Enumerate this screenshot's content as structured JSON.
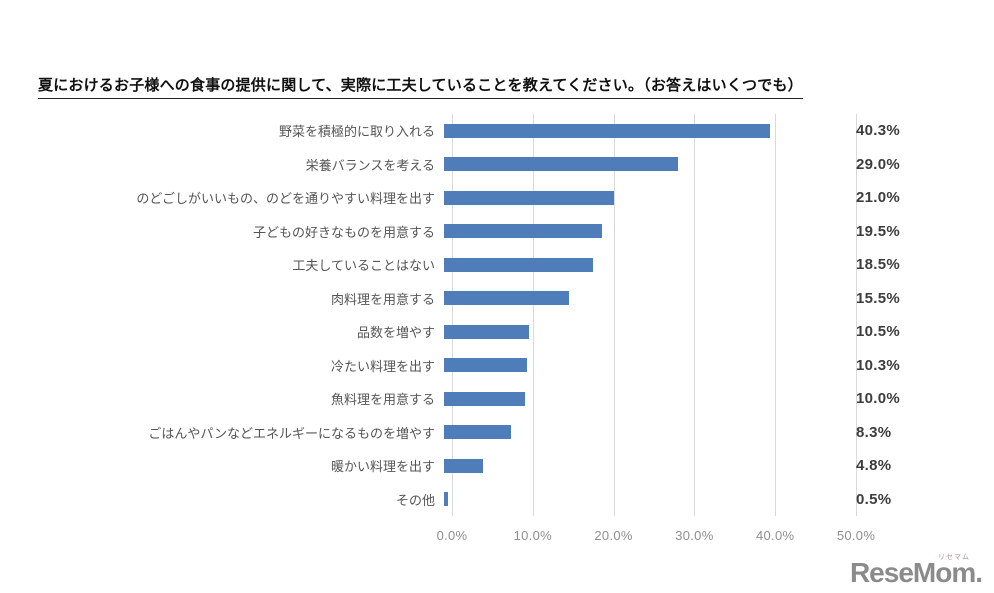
{
  "title": "夏におけるお子様への食事の提供に関して、実際に工夫していることを教えてください。（お答えはいくつでも）",
  "chart_data": {
    "type": "bar",
    "orientation": "horizontal",
    "title": "夏におけるお子様への食事の提供に関して、実際に工夫していることを教えてください。（お答えはいくつでも）",
    "categories": [
      "野菜を積極的に取り入れる",
      "栄養バランスを考える",
      "のどごしがいいもの、のどを通りやすい料理を出す",
      "子どもの好きなものを用意する",
      "工夫していることはない",
      "肉料理を用意する",
      "品数を増やす",
      "冷たい料理を出す",
      "魚料理を用意する",
      "ごはんやパンなどエネルギーになるものを増やす",
      "暖かい料理を出す",
      "その他"
    ],
    "values": [
      40.3,
      29.0,
      21.0,
      19.5,
      18.5,
      15.5,
      10.5,
      10.3,
      10.0,
      8.3,
      4.8,
      0.5
    ],
    "value_labels": [
      "40.3%",
      "29.0%",
      "21.0%",
      "19.5%",
      "18.5%",
      "15.5%",
      "10.5%",
      "10.3%",
      "10.0%",
      "8.3%",
      "4.8%",
      "0.5%"
    ],
    "x_ticks": [
      "0.0%",
      "10.0%",
      "20.0%",
      "30.0%",
      "40.0%",
      "50.0%"
    ],
    "xlim": [
      0,
      50
    ],
    "grid": true,
    "legend": "none",
    "bar_color": "#4e7dba",
    "gridline_color": "#d9d9d9"
  },
  "logo": {
    "text": "ReseMom.",
    "small_text": "リセマム",
    "color": "#8b8b8b"
  }
}
